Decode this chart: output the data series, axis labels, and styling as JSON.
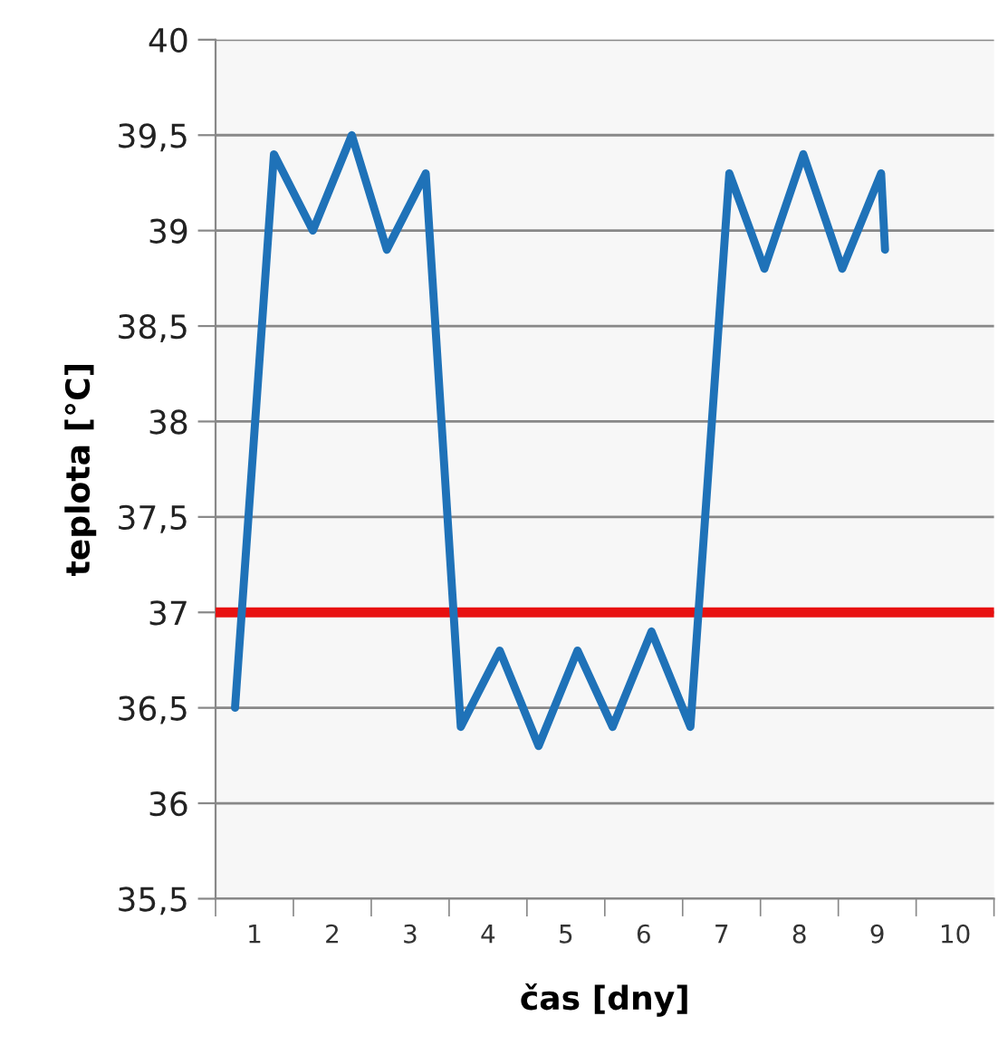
{
  "chart_data": {
    "type": "line",
    "xlabel": "čas [dny]",
    "ylabel": "teplota [°C]",
    "x": [
      0.75,
      1.25,
      1.75,
      2.25,
      2.7,
      3.2,
      3.65,
      4.15,
      4.65,
      5.15,
      5.6,
      6.1,
      6.6,
      7.1,
      7.55,
      8.05,
      8.55,
      9.05,
      9.1
    ],
    "series": [
      {
        "color": "#1f72b8",
        "values": [
          36.5,
          39.4,
          39.0,
          39.5,
          38.9,
          39.3,
          36.4,
          36.8,
          36.3,
          36.8,
          36.4,
          36.9,
          36.4,
          39.3,
          38.8,
          39.4,
          38.8,
          39.3,
          38.9
        ]
      }
    ],
    "xlim": [
      0.5,
      10.5
    ],
    "xticks": [
      1,
      2,
      3,
      4,
      5,
      6,
      7,
      8,
      9,
      10,
      {
        "value": 0.5,
        "label": null
      },
      {
        "value": 1.5,
        "label": null
      },
      {
        "value": 2.5,
        "label": null
      },
      {
        "value": 3.5,
        "label": null
      },
      {
        "value": 4.5,
        "label": null
      },
      {
        "value": 5.5,
        "label": null
      },
      {
        "value": 6.5,
        "label": null
      },
      {
        "value": 7.5,
        "label": null
      },
      {
        "value": 8.5,
        "label": null
      },
      {
        "value": 9.5,
        "label": null
      },
      {
        "value": 10.5,
        "label": null
      }
    ],
    "ylim": [
      35.5,
      40
    ],
    "yticks": [
      {
        "value": 35.5,
        "label": "35,5"
      },
      36,
      {
        "value": 36.5,
        "label": "36,5"
      },
      37,
      {
        "value": 37.5,
        "label": "37,5"
      },
      38,
      {
        "value": 38.5,
        "label": "38,5"
      },
      39,
      {
        "value": 39.5,
        "label": "39,5"
      },
      40
    ],
    "ref_lines": [
      {
        "axis": "y",
        "value": 37,
        "label": null,
        "color": "#e81010"
      }
    ],
    "grid": "y",
    "legend": false,
    "marker": "none",
    "line_style": "solid"
  }
}
